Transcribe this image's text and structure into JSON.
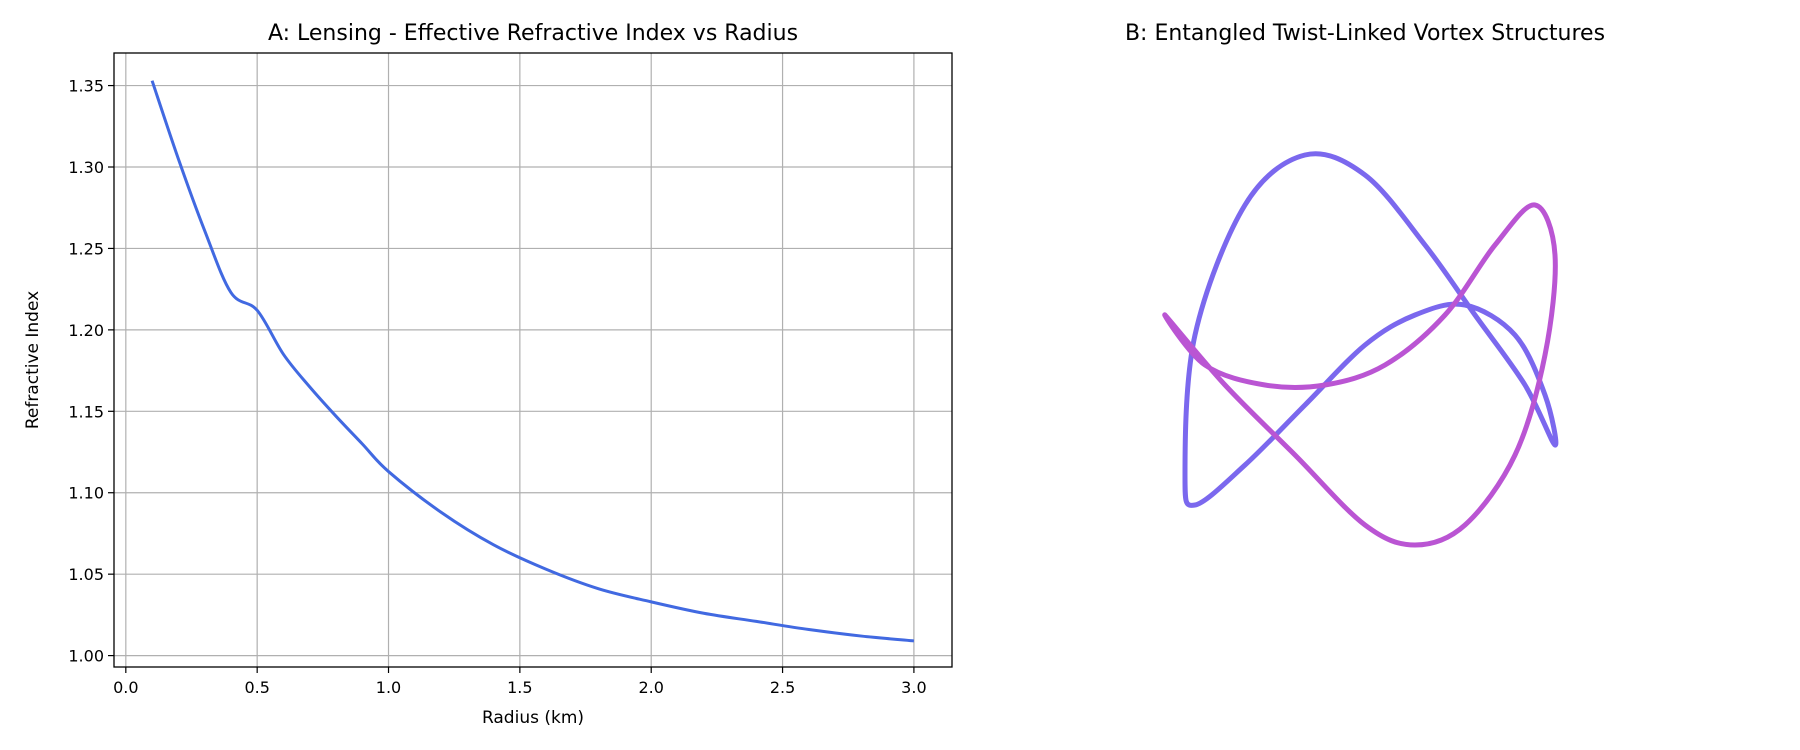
{
  "chart_data": [
    {
      "type": "line",
      "title": "A: Lensing - Effective Refractive Index vs Radius",
      "xlabel": "Radius (km)",
      "ylabel": "Refractive Index",
      "xlim": [
        -0.045,
        3.145
      ],
      "ylim": [
        0.993,
        1.37
      ],
      "x_ticks": [
        0.0,
        0.5,
        1.0,
        1.5,
        2.0,
        2.5,
        3.0
      ],
      "x_tick_labels": [
        "0.0",
        "0.5",
        "1.0",
        "1.5",
        "2.0",
        "2.5",
        "3.0"
      ],
      "y_ticks": [
        1.0,
        1.05,
        1.1,
        1.15,
        1.2,
        1.25,
        1.3,
        1.35
      ],
      "y_tick_labels": [
        "1.00",
        "1.05",
        "1.10",
        "1.15",
        "1.20",
        "1.25",
        "1.30",
        "1.35"
      ],
      "grid": true,
      "series": [
        {
          "color": "#4169e1",
          "x": [
            0.1,
            0.2,
            0.3,
            0.4,
            0.5,
            0.6,
            0.7,
            0.8,
            0.9,
            1.0,
            1.2,
            1.4,
            1.6,
            1.8,
            2.0,
            2.2,
            2.4,
            2.6,
            2.8,
            3.0
          ],
          "y": [
            1.353,
            1.305,
            1.261,
            1.223,
            1.212,
            1.185,
            1.165,
            1.147,
            1.13,
            1.113,
            1.088,
            1.068,
            1.053,
            1.041,
            1.033,
            1.026,
            1.021,
            1.016,
            1.012,
            1.009
          ]
        }
      ]
    },
    {
      "type": "line",
      "title": "B: Entangled Twist-Linked Vortex Structures",
      "axes_visible": false,
      "description_free": true,
      "series": [
        {
          "color": "#7b68ee",
          "x": [
            -0.9,
            -0.85,
            -0.6,
            -0.3,
            0.0,
            0.3,
            0.55,
            0.8,
            0.95,
            0.9,
            0.75,
            0.5,
            0.25,
            0.0,
            -0.3,
            -0.6,
            -0.85,
            -0.9
          ],
          "y": [
            -0.6,
            0.1,
            0.75,
            1.0,
            0.9,
            0.55,
            0.2,
            -0.15,
            -0.45,
            -0.2,
            0.1,
            0.25,
            0.2,
            0.05,
            -0.25,
            -0.55,
            -0.75,
            -0.6
          ]
        },
        {
          "color": "#ba55d3",
          "x": [
            -1.0,
            -0.8,
            -0.5,
            -0.2,
            0.1,
            0.4,
            0.65,
            0.85,
            0.95,
            0.9,
            0.75,
            0.5,
            0.25,
            0.0,
            -0.35,
            -0.7,
            -1.0
          ],
          "y": [
            0.2,
            -0.05,
            -0.15,
            -0.15,
            -0.05,
            0.2,
            0.55,
            0.75,
            0.5,
            0.0,
            -0.5,
            -0.85,
            -0.95,
            -0.85,
            -0.5,
            -0.15,
            0.2
          ]
        }
      ]
    }
  ]
}
